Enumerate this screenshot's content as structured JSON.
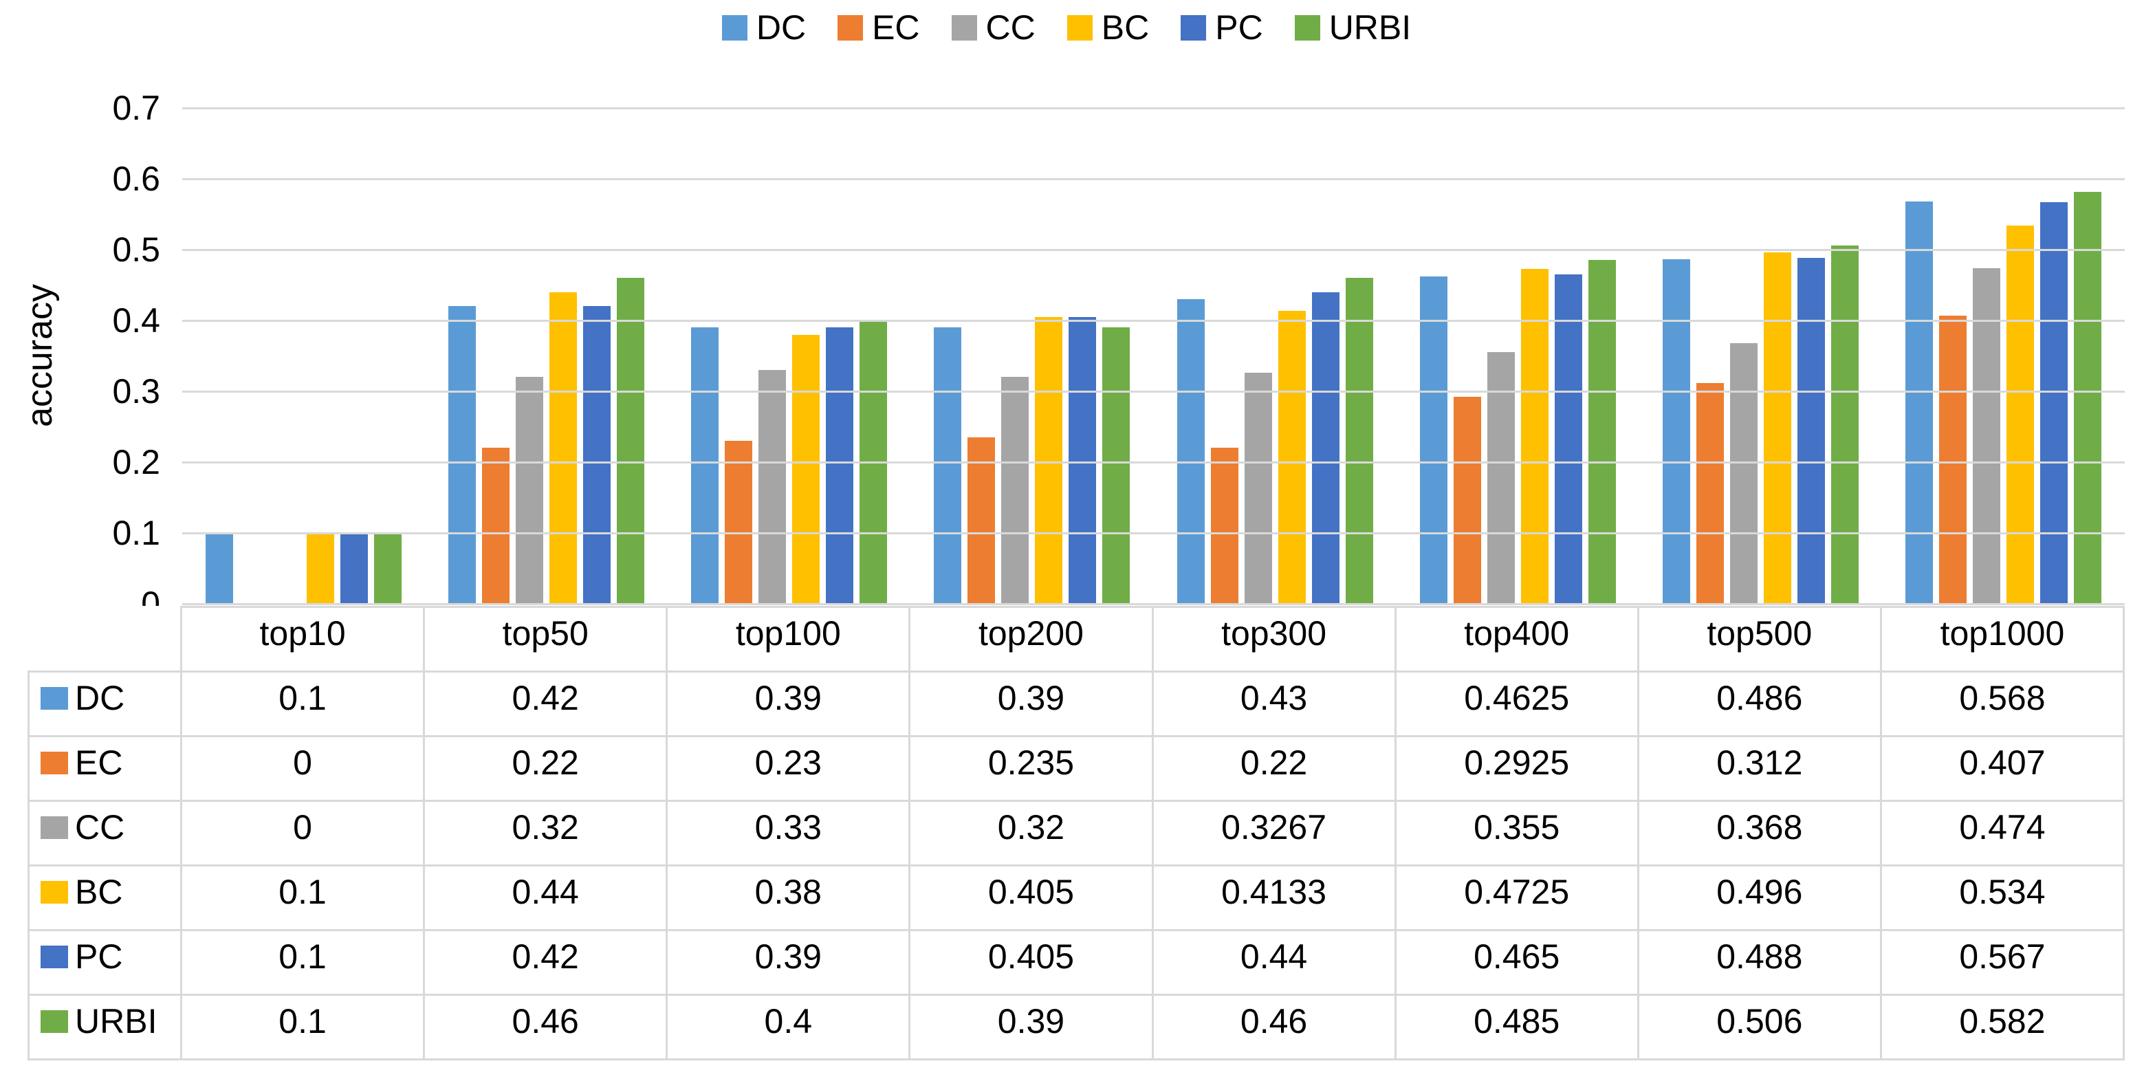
{
  "chart_data": {
    "type": "bar",
    "title": "",
    "ylabel": "accuracy",
    "xlabel": "",
    "ylim": [
      0,
      0.7
    ],
    "ytick_labels": [
      "0",
      "0.1",
      "0.2",
      "0.3",
      "0.4",
      "0.5",
      "0.6",
      "0.7"
    ],
    "grid": true,
    "legend_position": "top",
    "categories": [
      "top10",
      "top50",
      "top100",
      "top200",
      "top300",
      "top400",
      "top500",
      "top1000"
    ],
    "series": [
      {
        "name": "DC",
        "color": "#5B9BD5",
        "values": [
          0.1,
          0.42,
          0.39,
          0.39,
          0.43,
          0.4625,
          0.486,
          0.568
        ]
      },
      {
        "name": "EC",
        "color": "#ED7D31",
        "values": [
          0,
          0.22,
          0.23,
          0.235,
          0.22,
          0.2925,
          0.312,
          0.407
        ]
      },
      {
        "name": "CC",
        "color": "#A5A5A5",
        "values": [
          0,
          0.32,
          0.33,
          0.32,
          0.3267,
          0.355,
          0.368,
          0.474
        ]
      },
      {
        "name": "BC",
        "color": "#FFC000",
        "values": [
          0.1,
          0.44,
          0.38,
          0.405,
          0.4133,
          0.4725,
          0.496,
          0.534
        ]
      },
      {
        "name": "PC",
        "color": "#4472C4",
        "values": [
          0.1,
          0.42,
          0.39,
          0.405,
          0.44,
          0.465,
          0.488,
          0.567
        ]
      },
      {
        "name": "URBI",
        "color": "#70AD47",
        "values": [
          0.1,
          0.46,
          0.4,
          0.39,
          0.46,
          0.485,
          0.506,
          0.582
        ]
      }
    ],
    "gridline_color": "#D9D9D9",
    "table_border_color": "#D9D9D9"
  },
  "table": {
    "header": [
      "top10",
      "top50",
      "top100",
      "top200",
      "top300",
      "top400",
      "top500",
      "top1000"
    ],
    "rows": [
      {
        "label": "DC",
        "cells": [
          "0.1",
          "0.42",
          "0.39",
          "0.39",
          "0.43",
          "0.4625",
          "0.486",
          "0.568"
        ]
      },
      {
        "label": "EC",
        "cells": [
          "0",
          "0.22",
          "0.23",
          "0.235",
          "0.22",
          "0.2925",
          "0.312",
          "0.407"
        ]
      },
      {
        "label": "CC",
        "cells": [
          "0",
          "0.32",
          "0.33",
          "0.32",
          "0.3267",
          "0.355",
          "0.368",
          "0.474"
        ]
      },
      {
        "label": "BC",
        "cells": [
          "0.1",
          "0.44",
          "0.38",
          "0.405",
          "0.4133",
          "0.4725",
          "0.496",
          "0.534"
        ]
      },
      {
        "label": "PC",
        "cells": [
          "0.1",
          "0.42",
          "0.39",
          "0.405",
          "0.44",
          "0.465",
          "0.488",
          "0.567"
        ]
      },
      {
        "label": "URBI",
        "cells": [
          "0.1",
          "0.46",
          "0.4",
          "0.39",
          "0.46",
          "0.485",
          "0.506",
          "0.582"
        ]
      }
    ]
  }
}
